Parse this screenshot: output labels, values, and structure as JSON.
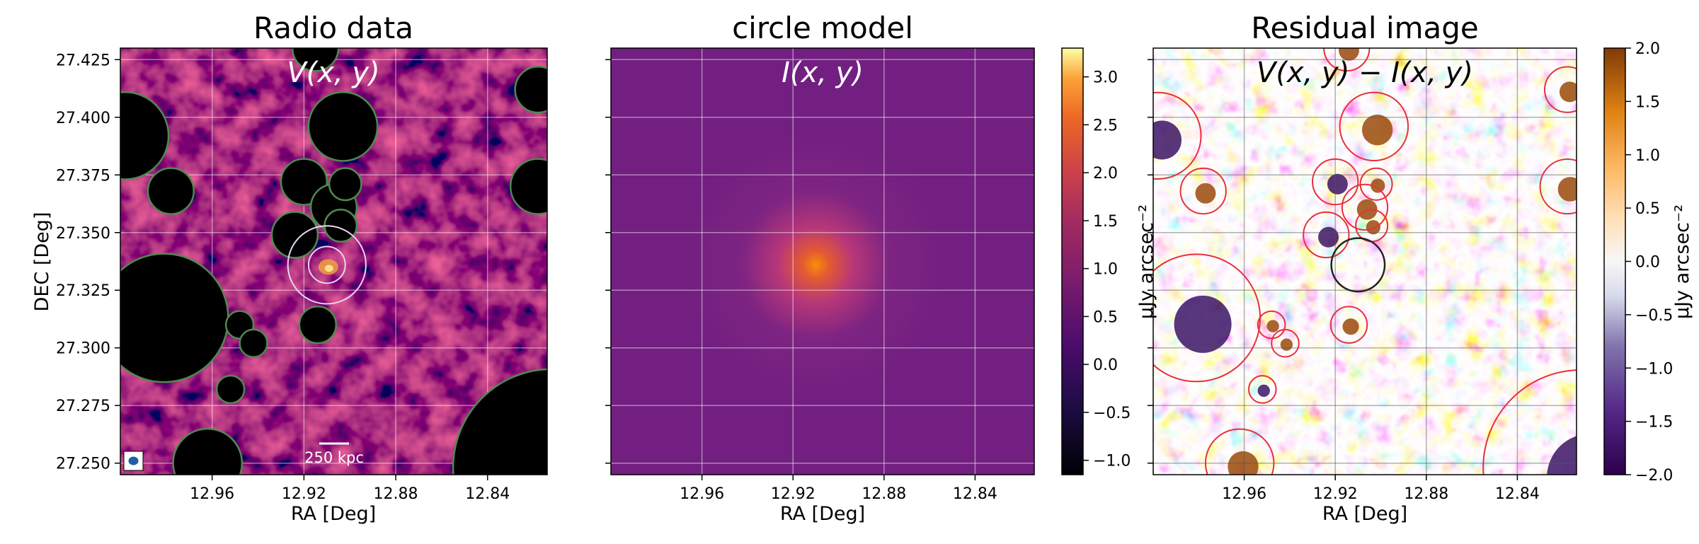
{
  "chart_data": [
    {
      "type": "heatmap",
      "title": "Radio data",
      "annotation": "V(x, y)",
      "xlabel": "RA [Deg]",
      "ylabel": "DEC [Deg]",
      "x_ticks": [
        "12.96",
        "12.92",
        "12.88",
        "12.84"
      ],
      "y_ticks": [
        "27.425",
        "27.400",
        "27.375",
        "27.350",
        "27.325",
        "27.300",
        "27.275",
        "27.250"
      ],
      "xlim": [
        13.0,
        12.814
      ],
      "ylim": [
        27.245,
        27.43
      ],
      "colormap": "inferno",
      "grid": true,
      "scalebar_label": "250 kpc",
      "masked_regions": [
        {
          "ra": 12.915,
          "dec": 27.43,
          "r": 0.01
        },
        {
          "ra": 12.818,
          "dec": 27.412,
          "r": 0.01
        },
        {
          "ra": 12.998,
          "dec": 27.392,
          "r": 0.019
        },
        {
          "ra": 12.903,
          "dec": 27.396,
          "r": 0.015
        },
        {
          "ra": 12.978,
          "dec": 27.368,
          "r": 0.01
        },
        {
          "ra": 12.92,
          "dec": 27.372,
          "r": 0.01
        },
        {
          "ra": 12.907,
          "dec": 27.361,
          "r": 0.01
        },
        {
          "ra": 12.902,
          "dec": 27.371,
          "r": 0.007
        },
        {
          "ra": 12.924,
          "dec": 27.349,
          "r": 0.01
        },
        {
          "ra": 12.904,
          "dec": 27.353,
          "r": 0.007
        },
        {
          "ra": 12.818,
          "dec": 27.37,
          "r": 0.012
        },
        {
          "ra": 12.981,
          "dec": 27.313,
          "r": 0.028
        },
        {
          "ra": 12.948,
          "dec": 27.31,
          "r": 0.006
        },
        {
          "ra": 12.942,
          "dec": 27.302,
          "r": 0.006
        },
        {
          "ra": 12.952,
          "dec": 27.282,
          "r": 0.006
        },
        {
          "ra": 12.914,
          "dec": 27.31,
          "r": 0.008
        },
        {
          "ra": 12.962,
          "dec": 27.25,
          "r": 0.015
        },
        {
          "ra": 12.812,
          "dec": 27.248,
          "r": 0.043
        }
      ],
      "source": {
        "ra": 12.91,
        "dec": 27.336,
        "r_inner": 0.008,
        "r_outer": 0.017
      }
    },
    {
      "type": "heatmap",
      "title": "circle model",
      "annotation": "I(x, y)",
      "xlabel": "RA [Deg]",
      "x_ticks": [
        "12.96",
        "12.92",
        "12.88",
        "12.84"
      ],
      "xlim": [
        13.0,
        12.814
      ],
      "ylim": [
        27.245,
        27.43
      ],
      "colormap": "inferno",
      "grid": true,
      "model_center": {
        "ra": 12.91,
        "dec": 27.336
      },
      "colorbar": {
        "ticks": [
          "3.0",
          "2.5",
          "2.0",
          "1.5",
          "1.0",
          "0.5",
          "0.0",
          "−0.5",
          "−1.0"
        ],
        "range": [
          -1.15,
          3.3
        ]
      }
    },
    {
      "type": "heatmap",
      "title": "Residual image",
      "annotation": "V(x, y) − I(x, y)",
      "xlabel": "RA [Deg]",
      "ylabel": "μJy arcsec⁻²",
      "x_ticks": [
        "12.96",
        "12.92",
        "12.88",
        "12.84"
      ],
      "xlim": [
        13.0,
        12.814
      ],
      "ylim": [
        27.245,
        27.43
      ],
      "colormap": "PuOr_r",
      "grid": true,
      "colorbar": {
        "label": "μJy arcsec⁻²",
        "ticks": [
          "2.0",
          "1.5",
          "1.0",
          "0.5",
          "0.0",
          "−0.5",
          "−1.0",
          "−1.5",
          "−2.0"
        ],
        "range": [
          -2.0,
          2.0
        ]
      }
    }
  ]
}
